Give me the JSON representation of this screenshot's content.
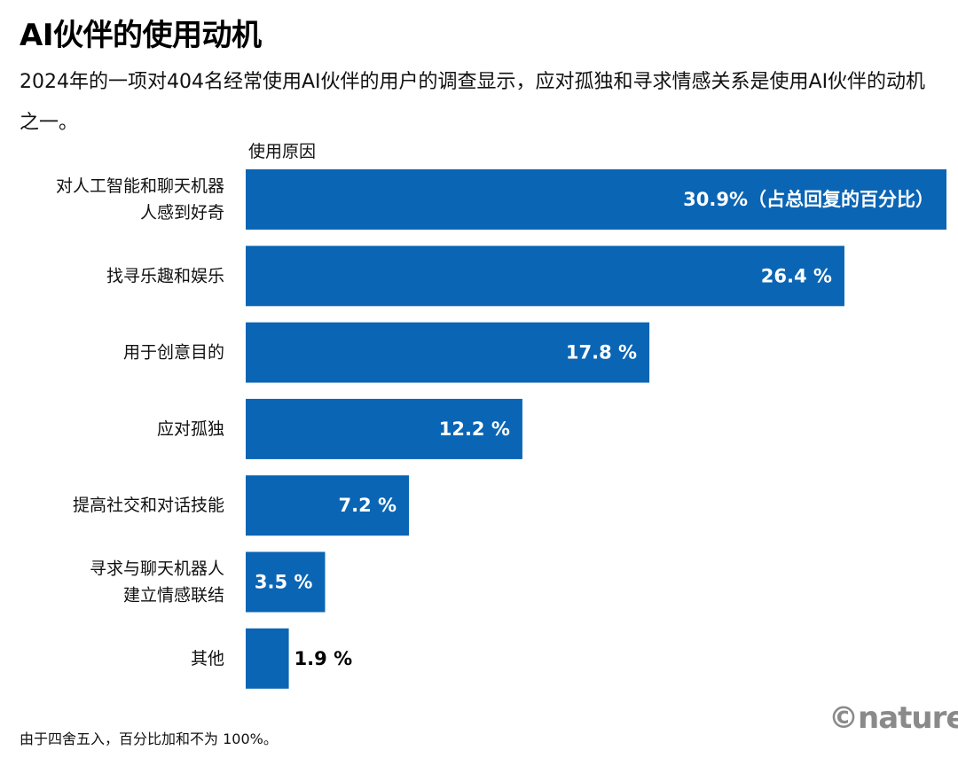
{
  "title": "AI伙伴的使用动机",
  "subtitle": "2024年的一项对404名经常使用AI伙伴的用户的调查显示，应对孤独和寻求情感关系是使用AI伙伴的动机之一。",
  "footnote": "由于四舍五入，百分比加和不为 100%。",
  "brand": "©nature",
  "colors": {
    "bar": "#0a65b5",
    "label_inside": "#ffffff",
    "label_outside": "#000000"
  },
  "chart_data": {
    "type": "bar",
    "orientation": "horizontal",
    "axis_title": "使用原因",
    "categories": [
      [
        "对人工智能和聊天机器",
        "人感到好奇"
      ],
      [
        "找寻乐趣和娱乐"
      ],
      [
        "用于创意目的"
      ],
      [
        "应对孤独"
      ],
      [
        "提高社交和对话技能"
      ],
      [
        "寻求与聊天机器人",
        "建立情感联结"
      ],
      [
        "其他"
      ]
    ],
    "values": [
      30.9,
      26.4,
      17.8,
      12.2,
      7.2,
      3.5,
      1.9
    ],
    "value_labels": [
      "30.9%（占总回复的百分比）",
      "26.4 %",
      "17.8 %",
      "12.2 %",
      "7.2 %",
      "3.5 %",
      "1.9 %"
    ],
    "xlim": [
      0,
      30.9
    ],
    "grid": false,
    "legend": "none"
  }
}
